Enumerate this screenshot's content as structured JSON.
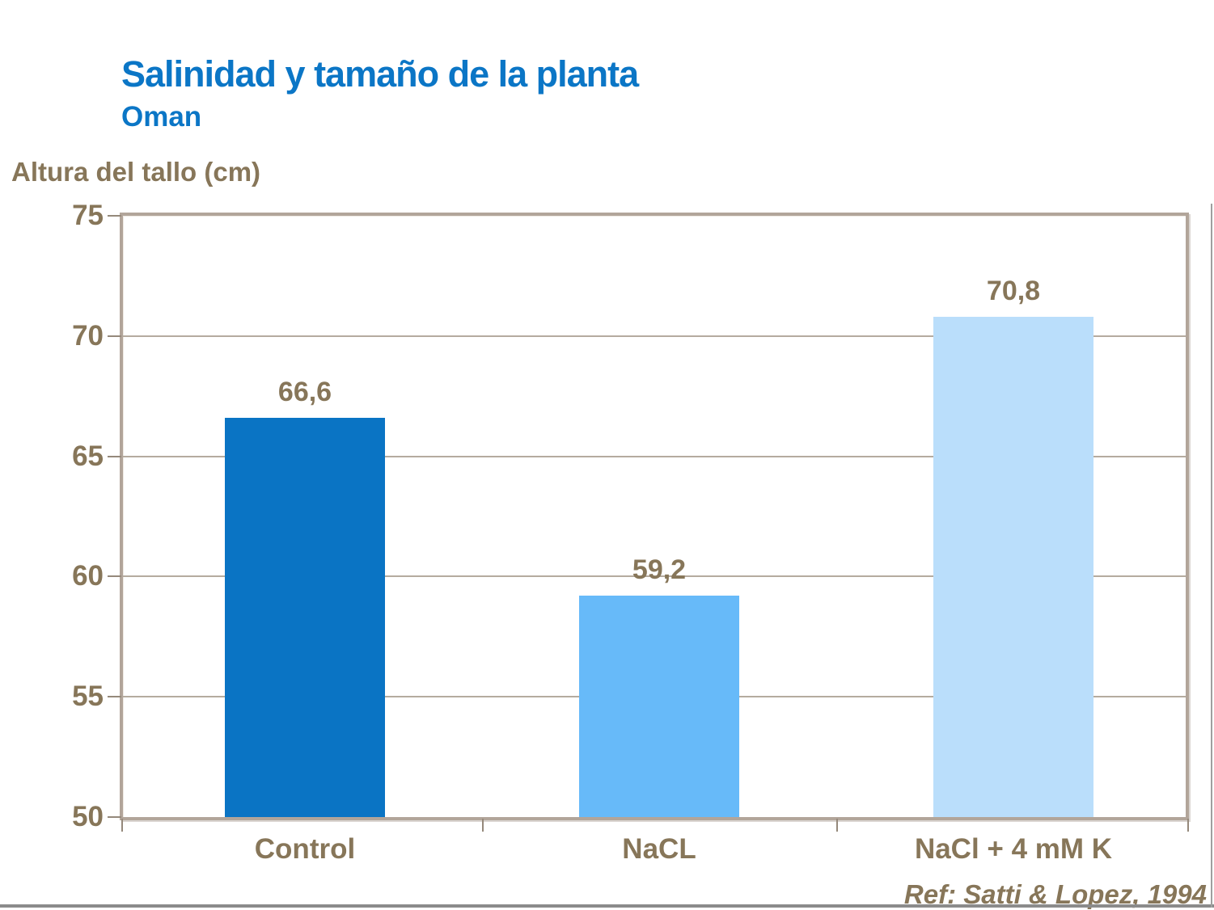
{
  "header": {
    "title": "Salinidad y tamaño de la planta",
    "subtitle": "Oman"
  },
  "axis_title": "Altura del tallo (cm)",
  "reference": "Ref: Satti & Lopez, 1994",
  "colors": {
    "title_blue": "#0b76c6",
    "text_brown": "#877659",
    "plot_border": "#b2a59a",
    "gridline": "#b5ab9f",
    "tick_mark": "#95897b",
    "bar_control": "#0a74c4",
    "bar_nacl": "#67baf9",
    "bar_nacl_k": "#badefb",
    "bottom_rule": "#8b8b8b",
    "right_rule": "#9f9f9f"
  },
  "chart_data": {
    "type": "bar",
    "title": "Salinidad y tamaño de la planta",
    "subtitle": "Oman",
    "ylabel": "Altura del tallo (cm)",
    "xlabel": "",
    "categories": [
      "Control",
      "NaCL",
      "NaCl + 4 mM K"
    ],
    "values": [
      66.6,
      59.2,
      70.8
    ],
    "value_labels": [
      "66,6",
      "59,2",
      "70,8"
    ],
    "bar_colors": [
      "#0a74c4",
      "#67baf9",
      "#badefb"
    ],
    "ylim": [
      50,
      75
    ],
    "yticks": [
      50,
      55,
      60,
      65,
      70,
      75
    ],
    "grid": "horizontal",
    "legend": "none",
    "annotation": "Ref: Satti & Lopez, 1994"
  }
}
